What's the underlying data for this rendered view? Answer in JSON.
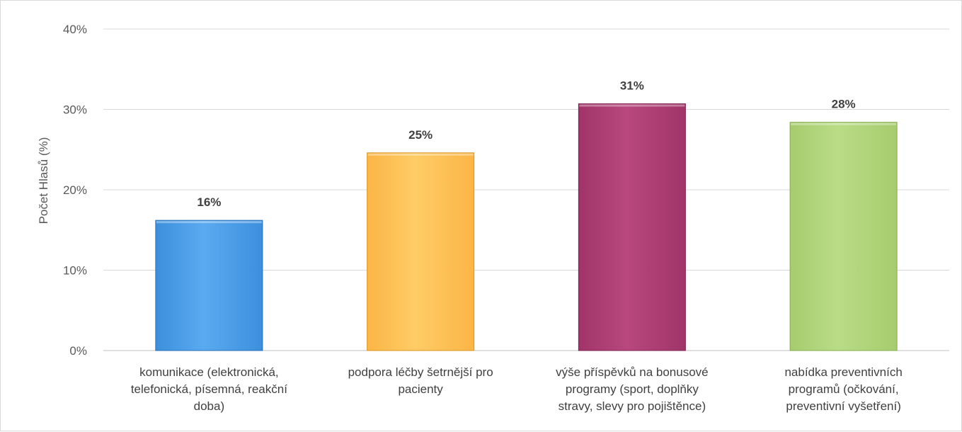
{
  "chart_data": {
    "type": "bar",
    "title": "",
    "xlabel": "",
    "ylabel": "Počet Hlasů (%)",
    "ylim": [
      0,
      40
    ],
    "ytick_labels": [
      "0%",
      "10%",
      "20%",
      "30%",
      "40%"
    ],
    "ytick_values": [
      0,
      10,
      20,
      30,
      40
    ],
    "grid": true,
    "legend": "none",
    "categories": [
      [
        "komunikace (elektronická,",
        "telefonická, písemná, reakční",
        "doba)"
      ],
      [
        "podpora léčby šetrnější pro",
        "pacienty"
      ],
      [
        "výše příspěvků na bonusové",
        "programy (sport, doplňky",
        "stravy, slevy pro pojištěnce)"
      ],
      [
        "nabídka preventivních",
        "programů (očkování,",
        "preventivní vyšetření)"
      ]
    ],
    "values": [
      16.2,
      24.6,
      30.7,
      28.4
    ],
    "data_labels": [
      "16%",
      "25%",
      "31%",
      "28%"
    ],
    "colors": [
      {
        "light": "#5aaaf0",
        "base": "#3d8fdd",
        "dark": "#2a6fb3"
      },
      {
        "light": "#ffcc66",
        "base": "#fbb545",
        "dark": "#d99422"
      },
      {
        "light": "#b8487e",
        "base": "#a03468",
        "dark": "#7c2350"
      },
      {
        "light": "#b9dc86",
        "base": "#a6cc6e",
        "dark": "#84ad4e"
      }
    ]
  }
}
